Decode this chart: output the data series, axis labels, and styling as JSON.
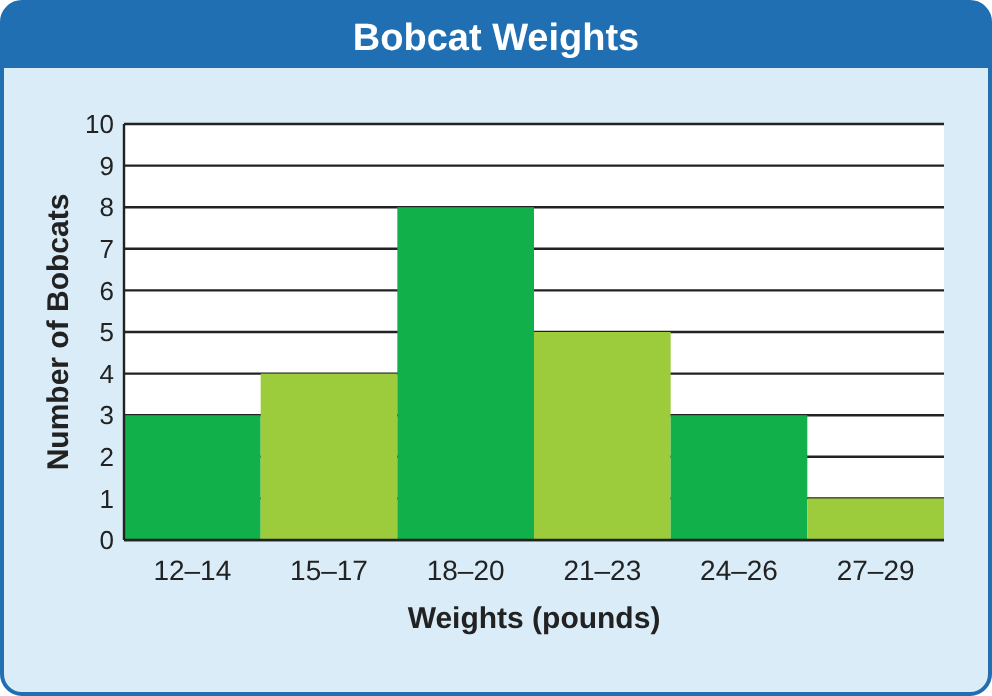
{
  "chart_data": {
    "type": "bar",
    "title": "Bobcat Weights",
    "xlabel": "Weights (pounds)",
    "ylabel": "Number of Bobcats",
    "categories": [
      "12–14",
      "15–17",
      "18–20",
      "21–23",
      "24–26",
      "27–29"
    ],
    "values": [
      3,
      4,
      8,
      5,
      3,
      1
    ],
    "colors": [
      "#12b04a",
      "#9ccc3c",
      "#12b04a",
      "#9ccc3c",
      "#12b04a",
      "#9ccc3c"
    ],
    "ylim": [
      0,
      10
    ],
    "yticks": [
      0,
      1,
      2,
      3,
      4,
      5,
      6,
      7,
      8,
      9,
      10
    ],
    "grid": "y"
  }
}
